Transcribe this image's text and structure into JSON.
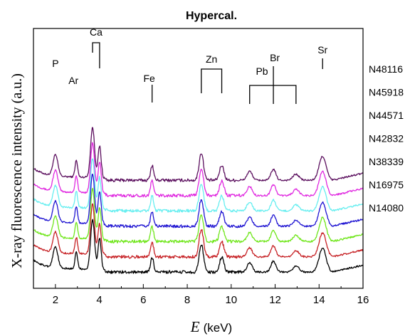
{
  "chart_data": {
    "type": "line",
    "title": "Hypercal.",
    "ylabel": "X-ray fluorescence intensity (a.u.)",
    "xlabel": {
      "symbol": "E",
      "unit": "(keV)"
    },
    "xlim": [
      1,
      16
    ],
    "x_ticks": [
      2,
      4,
      6,
      8,
      10,
      12,
      14,
      16
    ],
    "peaks": [
      {
        "label": "P",
        "energies": [
          2.0
        ]
      },
      {
        "label": "Ar",
        "energies": [
          2.95
        ]
      },
      {
        "label": "Ca",
        "energies": [
          3.69,
          4.01
        ]
      },
      {
        "label": "Fe",
        "energies": [
          6.4
        ]
      },
      {
        "label": "Zn",
        "energies": [
          8.64,
          9.57
        ]
      },
      {
        "label": "Pb",
        "energies": [
          10.84,
          12.95
        ]
      },
      {
        "label": "Br",
        "energies": [
          11.92
        ]
      },
      {
        "label": "Sr",
        "energies": [
          14.16
        ]
      }
    ],
    "series": [
      {
        "name": "N48116",
        "color": "#5b0f5e"
      },
      {
        "name": "N45918",
        "color": "#e02ae0"
      },
      {
        "name": "N44571",
        "color": "#66eef0"
      },
      {
        "name": "N42832",
        "color": "#1f14d2"
      },
      {
        "name": "N38339",
        "color": "#6fe61a"
      },
      {
        "name": "N16975",
        "color": "#c62024"
      },
      {
        "name": "N14080",
        "color": "#000000"
      }
    ]
  }
}
